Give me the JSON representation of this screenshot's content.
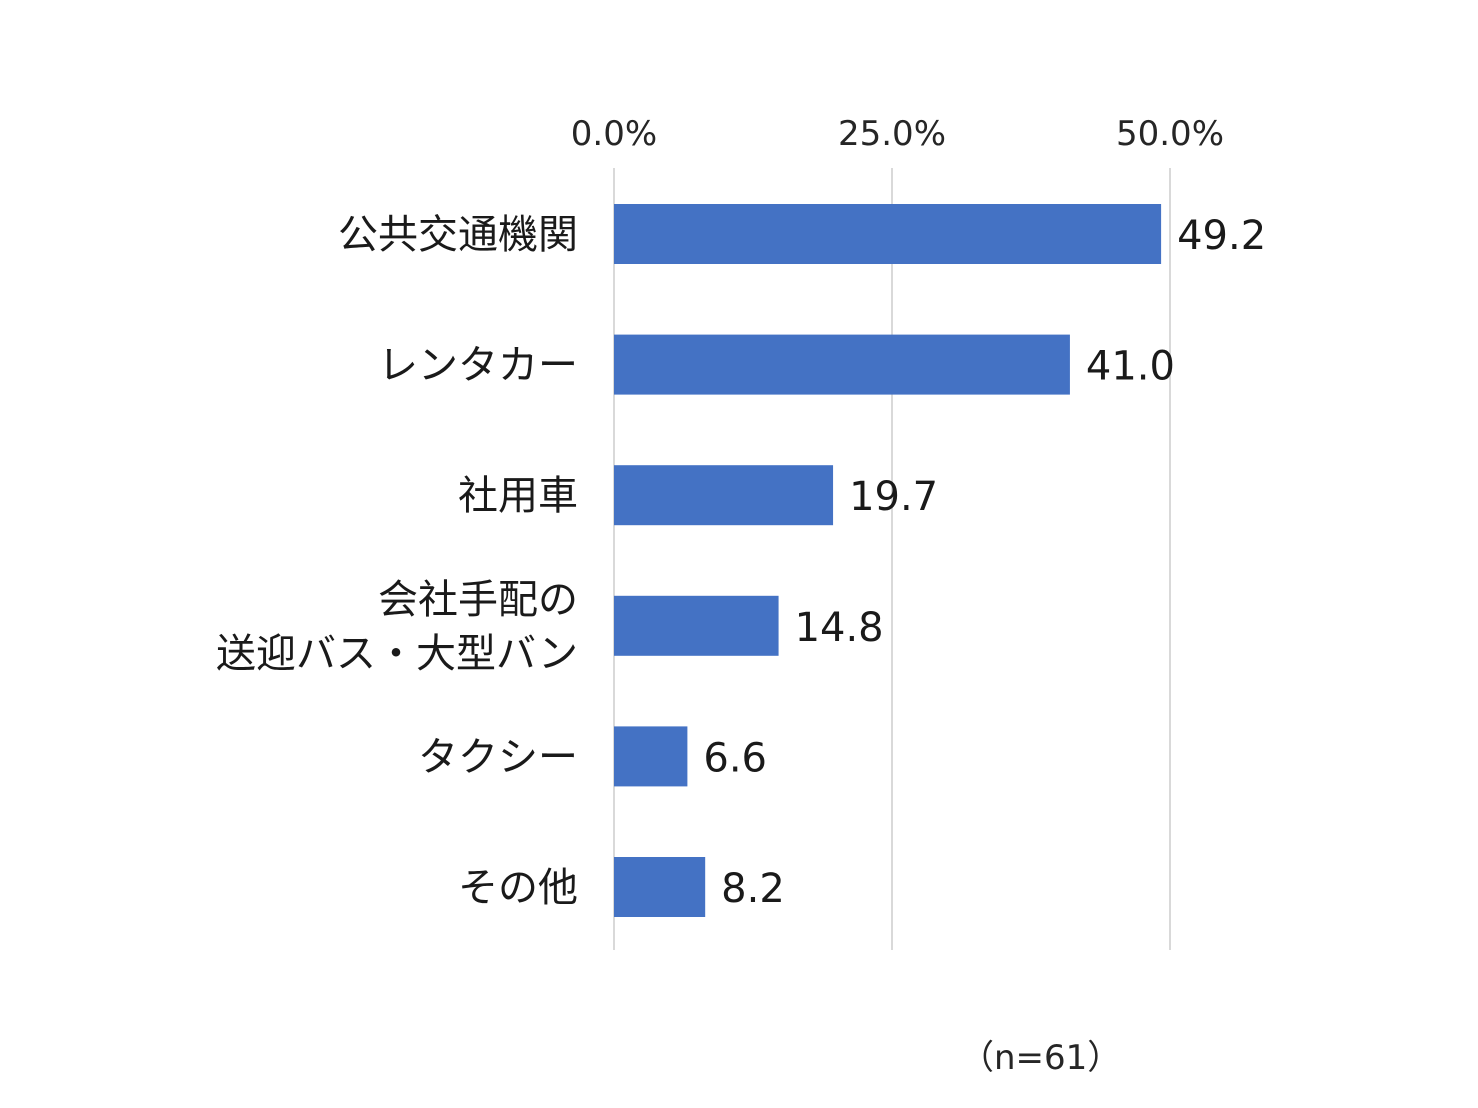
{
  "chart_data": {
    "type": "bar",
    "orientation": "horizontal",
    "categories": [
      [
        "公共交通機関"
      ],
      [
        "レンタカー"
      ],
      [
        "社用車"
      ],
      [
        "会社手配の",
        "送迎バス・大型バン"
      ],
      [
        "タクシー"
      ],
      [
        "その他"
      ]
    ],
    "values": [
      49.2,
      41.0,
      19.7,
      14.8,
      6.6,
      8.2
    ],
    "value_labels": [
      "49.2",
      "41.0",
      "19.7",
      "14.8",
      "6.6",
      "8.2"
    ],
    "ticks": [
      0,
      25,
      50
    ],
    "tick_labels": [
      "0.0%",
      "25.0%",
      "50.0%"
    ],
    "xlim": [
      0,
      50
    ],
    "axis_position": "top",
    "grid": true,
    "legend": "none",
    "bar_color": "#4472C4",
    "grid_color": "#D9D9D9",
    "note": "（n=61）"
  }
}
